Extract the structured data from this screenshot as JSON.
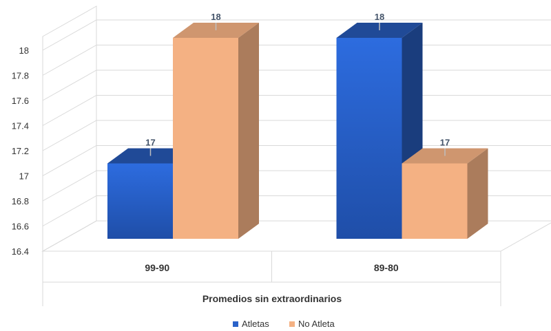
{
  "chart_data": {
    "type": "bar",
    "style": "3d-clustered-column",
    "categories": [
      "99-90",
      "89-80"
    ],
    "series": [
      {
        "name": "Atletas",
        "values": [
          17,
          18
        ],
        "color": "#2a62c9",
        "data_labels": [
          "17",
          "18"
        ]
      },
      {
        "name": "No Atleta",
        "values": [
          18,
          17
        ],
        "color": "#f4b183",
        "data_labels": [
          "18",
          "17"
        ]
      }
    ],
    "xlabel": "Promedios sin extraordinarios",
    "ylabel": "",
    "ylim": [
      16.4,
      18.2
    ],
    "yticks": [
      "16.4",
      "16.6",
      "16.8",
      "17",
      "17.2",
      "17.4",
      "17.6",
      "17.8",
      "18"
    ],
    "grid": true,
    "legend_position": "bottom"
  }
}
